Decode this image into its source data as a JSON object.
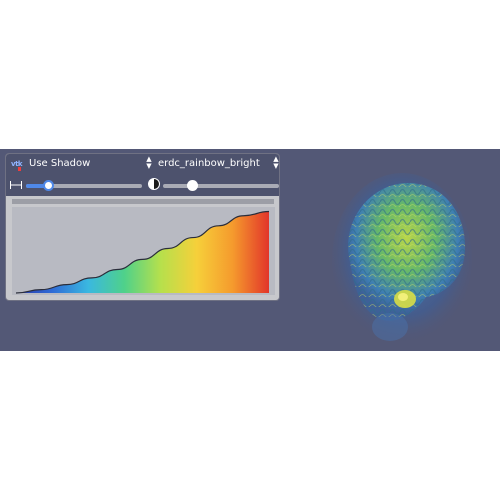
{
  "panel": {
    "logo_text": "vtk",
    "shadow_select": {
      "value": "Use Shadow"
    },
    "colormap_select": {
      "value": "erdc_rainbow_bright"
    },
    "icons": {
      "width": "width-arrows-icon",
      "contrast": "contrast-icon",
      "spinner": "updown-spinner-icon"
    },
    "width_slider": {
      "value": 0.19
    },
    "opacity_slider": {
      "value": 0.25
    }
  },
  "colors": {
    "viewport_bg": "#535876",
    "panel_header": "#4d526d",
    "accent": "#4f88e8",
    "colormap": [
      "#2b3aa8",
      "#2f6bd6",
      "#3ab8e0",
      "#4fd18a",
      "#b6e04c",
      "#f6d03a",
      "#f59a2d",
      "#e2352a"
    ]
  },
  "chart_data": {
    "type": "area",
    "title": "",
    "xlabel": "",
    "ylabel": "",
    "xlim": [
      0,
      1
    ],
    "ylim": [
      0,
      1
    ],
    "grid": false,
    "opacity_curve": {
      "x": [
        0,
        0.1,
        0.2,
        0.3,
        0.4,
        0.5,
        0.6,
        0.7,
        0.8,
        0.9,
        1.0
      ],
      "y": [
        0.0,
        0.04,
        0.1,
        0.18,
        0.28,
        0.4,
        0.53,
        0.66,
        0.8,
        0.92,
        0.97
      ]
    }
  }
}
